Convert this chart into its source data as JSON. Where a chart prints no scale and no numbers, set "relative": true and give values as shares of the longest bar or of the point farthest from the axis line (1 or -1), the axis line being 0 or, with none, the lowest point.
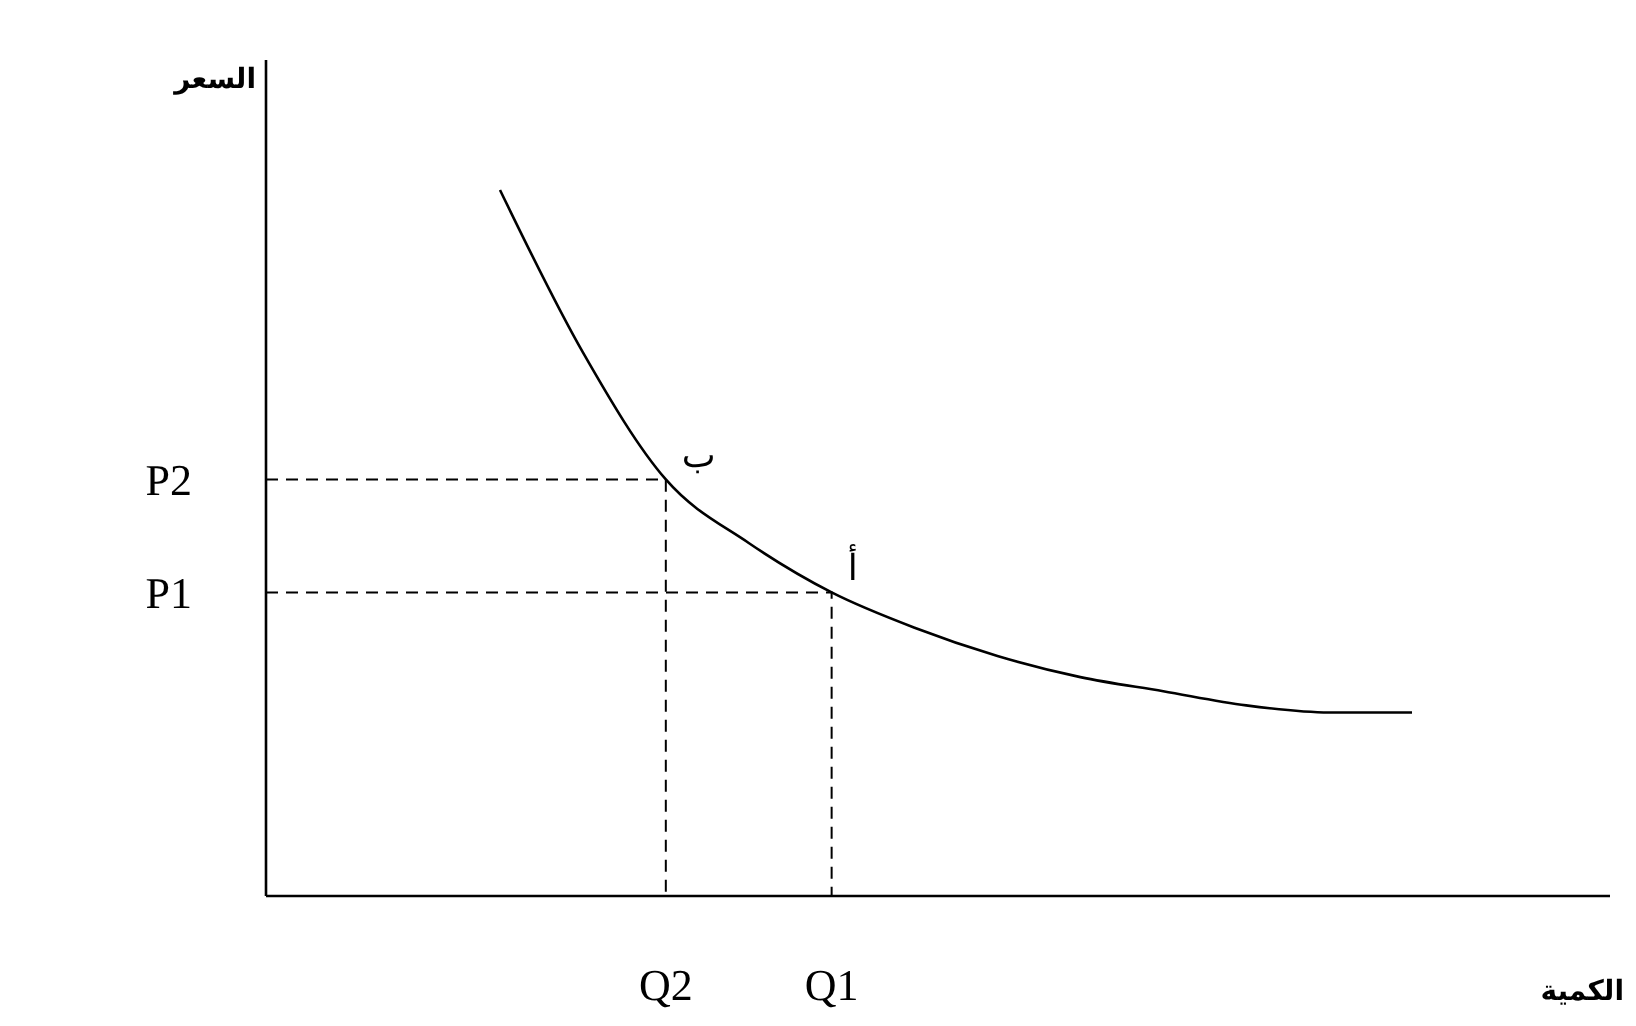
{
  "chart_data": {
    "type": "line",
    "relative": true,
    "xlabel": "الكمية",
    "categories": [
      null,
      null,
      "Q2",
      null,
      "Q1",
      null,
      null,
      null,
      null,
      null,
      null,
      null
    ],
    "series": [
      {
        "color": "#000000",
        "values": [
          1,
          0.77,
          0.59,
          0.5,
          0.43,
          0.38,
          0.34,
          0.31,
          0.29,
          0.27,
          0.26,
          0.26
        ]
      }
    ],
    "ref_lines": [
      {
        "axis": "y",
        "value": 0.59,
        "label": "P2",
        "line_style": "dashed"
      },
      {
        "axis": "y",
        "value": 0.43,
        "label": "P1",
        "line_style": "dashed"
      }
    ],
    "annotations": [
      "السعر",
      {
        "text": "ب",
        "x": "Q2",
        "y": 0.59
      },
      {
        "text": "أ",
        "x": "Q1",
        "y": 0.43
      }
    ]
  }
}
